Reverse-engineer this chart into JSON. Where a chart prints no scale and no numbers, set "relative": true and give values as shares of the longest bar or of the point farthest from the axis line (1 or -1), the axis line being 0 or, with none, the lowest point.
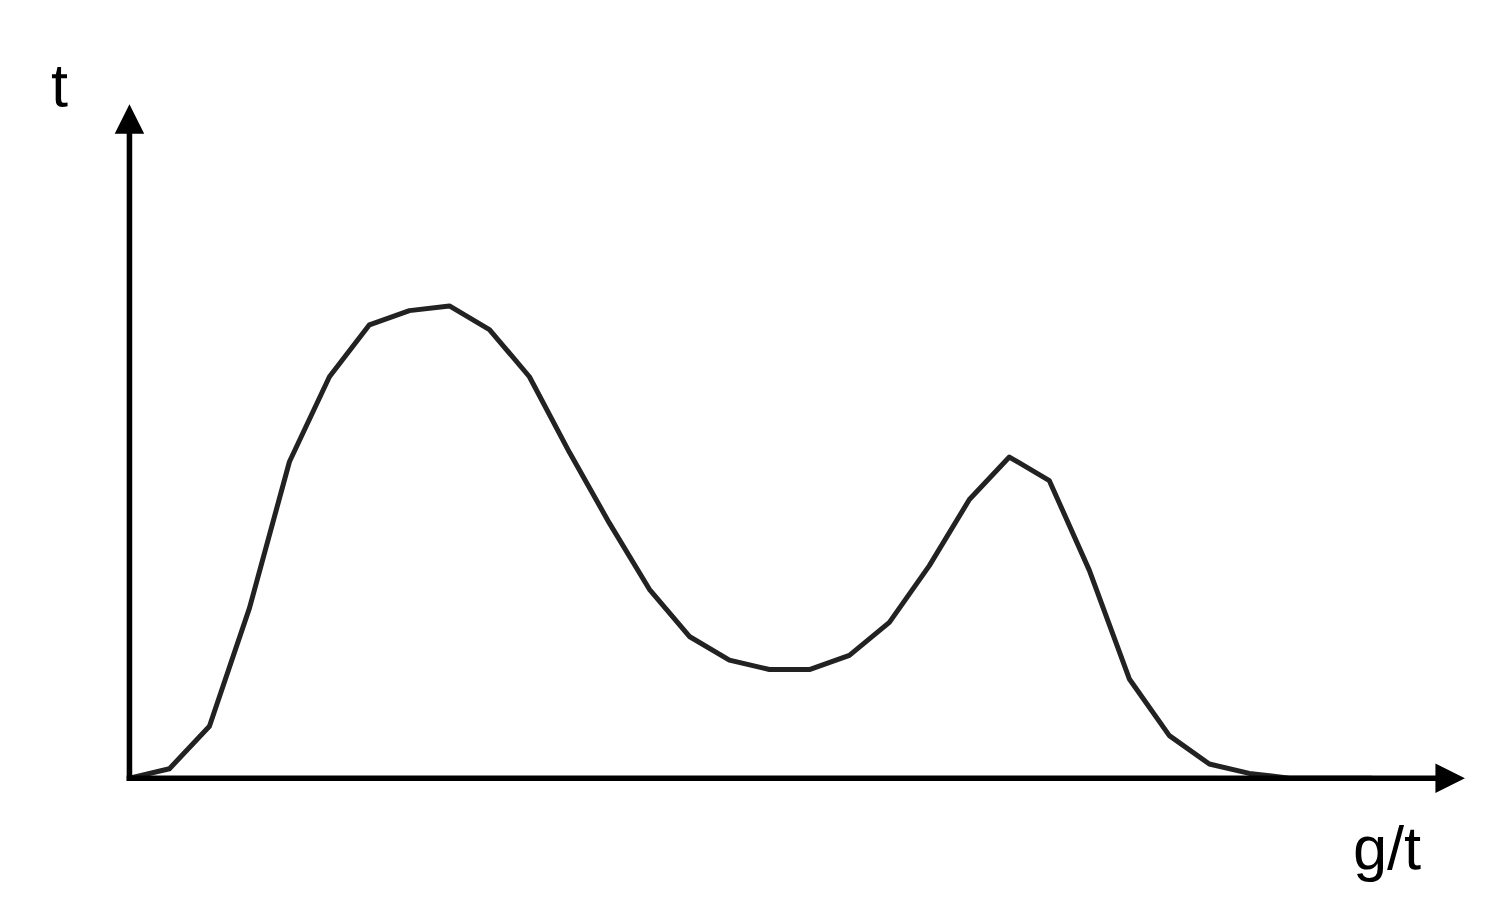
{
  "chart_data": {
    "type": "line",
    "relative": true,
    "xlabel": "g/t",
    "ylabel": "t",
    "categories": [
      null,
      null,
      null,
      null,
      null,
      null,
      null,
      null,
      null,
      null,
      null,
      null,
      null,
      null,
      null,
      null,
      null,
      null,
      null,
      null,
      null,
      null,
      null,
      null,
      null,
      null,
      null,
      null,
      null,
      null,
      null,
      null
    ],
    "series": [
      {
        "color": "#222222",
        "values": [
          0,
          0.02,
          0.11,
          0.36,
          0.67,
          0.85,
          0.96,
          0.99,
          1,
          0.95,
          0.85,
          0.69,
          0.54,
          0.4,
          0.3,
          0.25,
          0.23,
          0.23,
          0.26,
          0.33,
          0.45,
          0.59,
          0.68,
          0.63,
          0.44,
          0.21,
          0.09,
          0.03,
          0.01,
          0,
          0,
          0
        ]
      }
    ],
    "grid": false,
    "legend": false,
    "marker": "none",
    "line_style": "solid"
  }
}
